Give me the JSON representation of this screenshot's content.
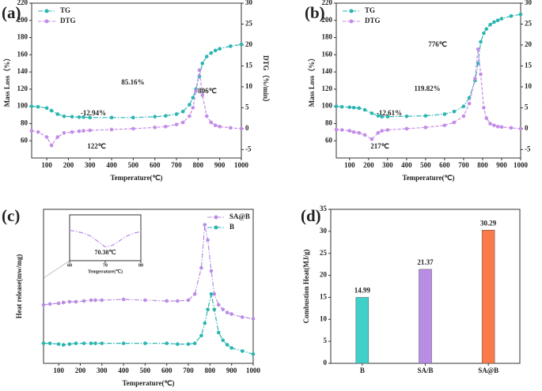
{
  "chart_data": [
    {
      "type": "line",
      "panel_label": "(a)",
      "xlabel": "Temperature(℃)",
      "ylabel": "Mass Loss（%）",
      "y2label": "DTG（%/min）",
      "x": [
        30,
        60,
        100,
        122,
        150,
        180,
        217,
        250,
        270,
        300,
        400,
        500,
        600,
        650,
        700,
        730,
        760,
        776,
        790,
        806,
        820,
        840,
        860,
        880,
        900,
        950,
        1000
      ],
      "xlim": [
        30,
        1000
      ],
      "xticks": [
        100,
        200,
        300,
        400,
        500,
        600,
        700,
        800,
        900,
        1000
      ],
      "ylim": [
        40,
        220
      ],
      "yticks": [
        60,
        80,
        100,
        120,
        140,
        160,
        180,
        200,
        220
      ],
      "y2lim": [
        -7,
        30
      ],
      "y2ticks": [
        -5,
        0,
        5,
        10,
        15,
        20,
        25,
        30
      ],
      "legend": "upper left",
      "series": [
        {
          "name": "TG",
          "color": "#2ab5b0",
          "linestyle": "dash-dot",
          "values": [
            100,
            99.5,
            98,
            95,
            91,
            88.5,
            88,
            87.5,
            87.5,
            87,
            87,
            87,
            88,
            89,
            91,
            94,
            102,
            110,
            120,
            135,
            150,
            158,
            162,
            165,
            167,
            170,
            172
          ]
        },
        {
          "name": "DTG",
          "color": "#c48be8",
          "linestyle": "dashed",
          "axis": "y2",
          "values": [
            -0.5,
            -0.8,
            -2,
            -4,
            -2,
            -1,
            -0.8,
            -0.6,
            -0.5,
            -0.4,
            -0.2,
            0,
            0.3,
            0.5,
            1,
            1.5,
            3,
            5,
            9,
            14,
            8,
            3,
            1.5,
            0.8,
            0.5,
            0.2,
            0
          ]
        }
      ],
      "annotations": [
        {
          "text": "-12.94%",
          "color": "#2ab5b0"
        },
        {
          "text": "85.16%",
          "color": "#2ab5b0"
        },
        {
          "text": "806℃",
          "color": "#c48be8"
        },
        {
          "text": "122℃",
          "color": "#c48be8"
        }
      ]
    },
    {
      "type": "line",
      "panel_label": "(b)",
      "xlabel": "Temperature(℃)",
      "ylabel": "Mass Loss（%）",
      "y2label": "DTG（%/min）",
      "x": [
        30,
        60,
        100,
        122,
        150,
        180,
        217,
        250,
        270,
        300,
        400,
        500,
        600,
        650,
        700,
        730,
        760,
        776,
        790,
        806,
        820,
        840,
        860,
        880,
        900,
        950,
        1000
      ],
      "xlim": [
        30,
        1000
      ],
      "xticks": [
        100,
        200,
        300,
        400,
        500,
        600,
        700,
        800,
        900,
        1000
      ],
      "ylim": [
        40,
        220
      ],
      "yticks": [
        60,
        80,
        100,
        120,
        140,
        160,
        180,
        200,
        220
      ],
      "y2lim": [
        -7,
        30
      ],
      "y2ticks": [
        -5,
        0,
        5,
        10,
        15,
        20,
        25,
        30
      ],
      "legend": "upper left",
      "series": [
        {
          "name": "TG",
          "color": "#2ab5b0",
          "linestyle": "dash-dot",
          "values": [
            100,
            99.5,
            99,
            98.5,
            98,
            96,
            92,
            89,
            88,
            88,
            88.5,
            89,
            91,
            94,
            100,
            110,
            130,
            150,
            175,
            185,
            190,
            195,
            198,
            200,
            202,
            205,
            207
          ]
        },
        {
          "name": "DTG",
          "color": "#c48be8",
          "linestyle": "dashed",
          "axis": "y2",
          "values": [
            -0.2,
            -0.3,
            -0.5,
            -0.8,
            -1,
            -1.5,
            -2.5,
            -1,
            -0.5,
            -0.3,
            0,
            0.3,
            0.8,
            1.5,
            3,
            6,
            12,
            19,
            13,
            5,
            2.5,
            1.2,
            0.8,
            0.5,
            0.4,
            0.2,
            0
          ]
        }
      ],
      "annotations": [
        {
          "text": "-12.61%",
          "color": "#2ab5b0"
        },
        {
          "text": "119.82%",
          "color": "#2ab5b0"
        },
        {
          "text": "776℃",
          "color": "#c48be8"
        },
        {
          "text": "217℃",
          "color": "#c48be8"
        }
      ]
    },
    {
      "type": "line",
      "panel_label": "(c)",
      "xlabel": "Temperature(℃)",
      "ylabel": "Heat release(mw/mg)",
      "x": [
        30,
        60,
        100,
        122,
        150,
        180,
        217,
        250,
        270,
        300,
        400,
        500,
        600,
        650,
        700,
        730,
        760,
        776,
        790,
        806,
        820,
        840,
        860,
        880,
        900,
        950,
        1000
      ],
      "xlim": [
        30,
        1000
      ],
      "xticks": [
        100,
        200,
        300,
        400,
        500,
        600,
        700,
        800,
        900,
        1000
      ],
      "ylim": [
        0,
        100
      ],
      "legend": "upper right",
      "series": [
        {
          "name": "SA@B",
          "color": "#b98ce6",
          "linestyle": "dash-dot",
          "values": [
            38,
            38.5,
            39,
            39.5,
            40,
            40,
            40.5,
            41,
            41,
            41,
            41.5,
            41,
            40.5,
            40.5,
            41,
            45,
            62,
            90,
            80,
            60,
            45,
            38,
            35,
            33,
            32,
            30,
            29
          ]
        },
        {
          "name": "B",
          "color": "#2ab5b0",
          "linestyle": "dash-dot",
          "values": [
            13,
            13,
            12.5,
            12,
            12.5,
            13,
            13,
            13,
            13,
            13,
            13,
            13,
            13,
            12.5,
            12.5,
            13,
            18,
            26,
            35,
            45,
            35,
            20,
            15,
            12,
            10,
            8,
            6
          ]
        }
      ]
    },
    {
      "type": "line",
      "xlabel": "Temperature(℃)",
      "x": [
        60,
        62,
        64,
        66,
        68,
        70,
        72,
        74,
        76,
        78,
        80
      ],
      "xlim": [
        60,
        80
      ],
      "xticks": [
        60,
        70,
        80
      ],
      "ylim": [
        20,
        80
      ],
      "series": [
        {
          "color": "#b98ce6",
          "linestyle": "dash-dot",
          "values": [
            60,
            58,
            56,
            52,
            45,
            38,
            40,
            46,
            52,
            56,
            58
          ]
        }
      ],
      "annotations": [
        {
          "text": "70.38℃",
          "color": "#333333"
        }
      ]
    },
    {
      "type": "bar",
      "panel_label": "(d)",
      "ylabel": "Combustion Heat(MJ/g)",
      "categories": [
        "B",
        "SA/B",
        "SA@B"
      ],
      "values": [
        14.99,
        21.37,
        30.29
      ],
      "colors": [
        "#3fd0c9",
        "#b98ce6",
        "#f97a4a"
      ],
      "ylim": [
        0,
        35
      ],
      "yticks": [
        0,
        5,
        10,
        15,
        20,
        25,
        30,
        35
      ]
    }
  ]
}
